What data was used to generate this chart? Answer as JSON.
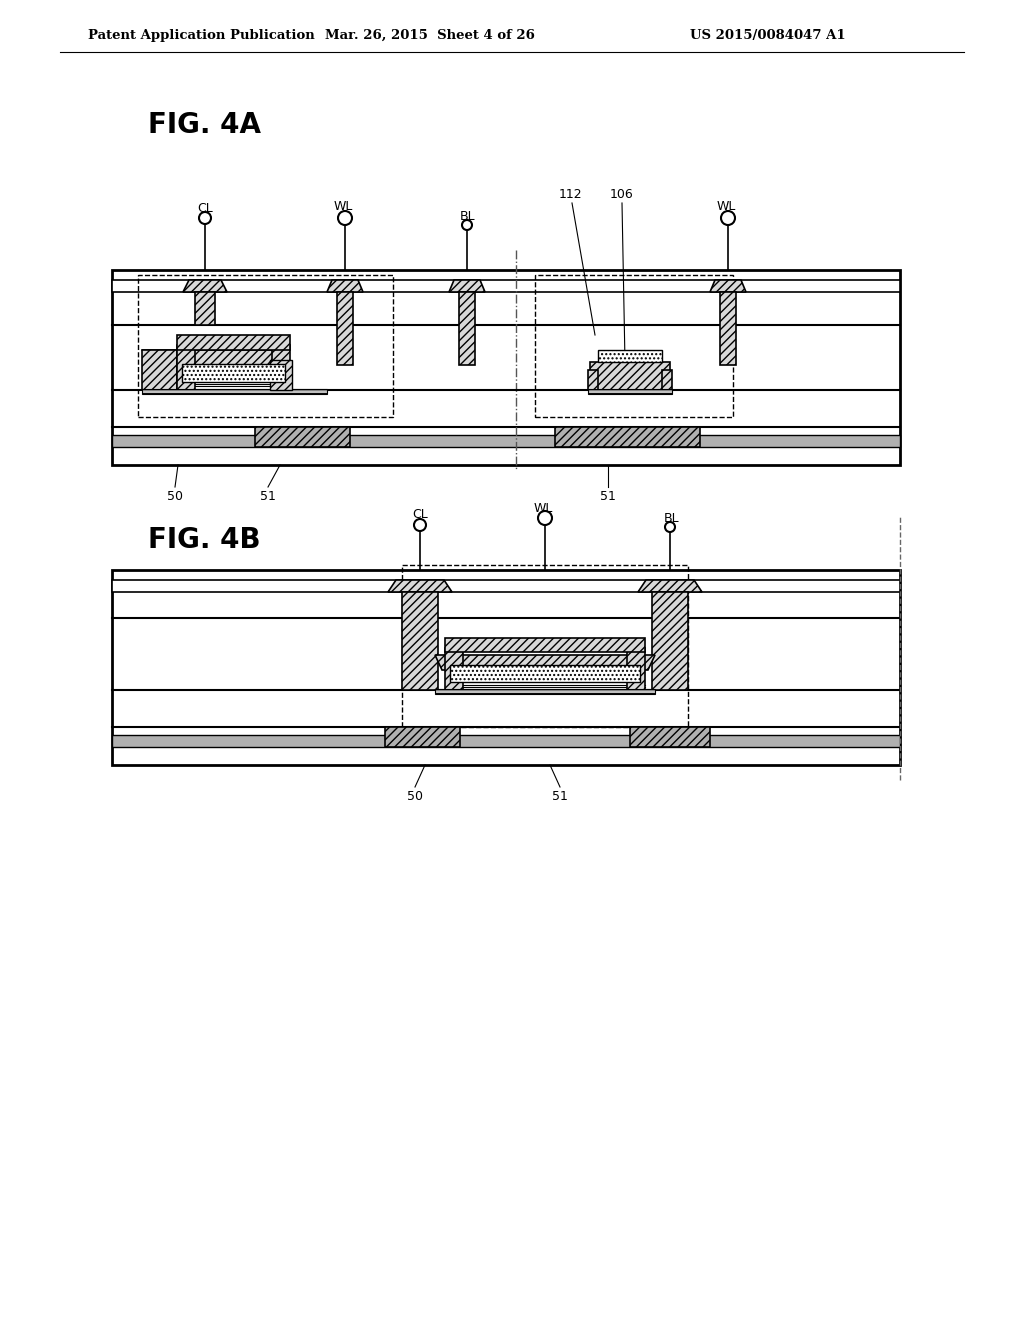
{
  "bg_color": "#ffffff",
  "lc": "#000000",
  "header_left": "Patent Application Publication",
  "header_mid": "Mar. 26, 2015  Sheet 4 of 26",
  "header_right": "US 2015/0084047 A1",
  "fig4a_label": "FIG. 4A",
  "fig4b_label": "FIG. 4B",
  "gray_fill": "#b0b0b0",
  "light_gray": "#d8d8d8",
  "hatch_gray": "#c0c0c0"
}
